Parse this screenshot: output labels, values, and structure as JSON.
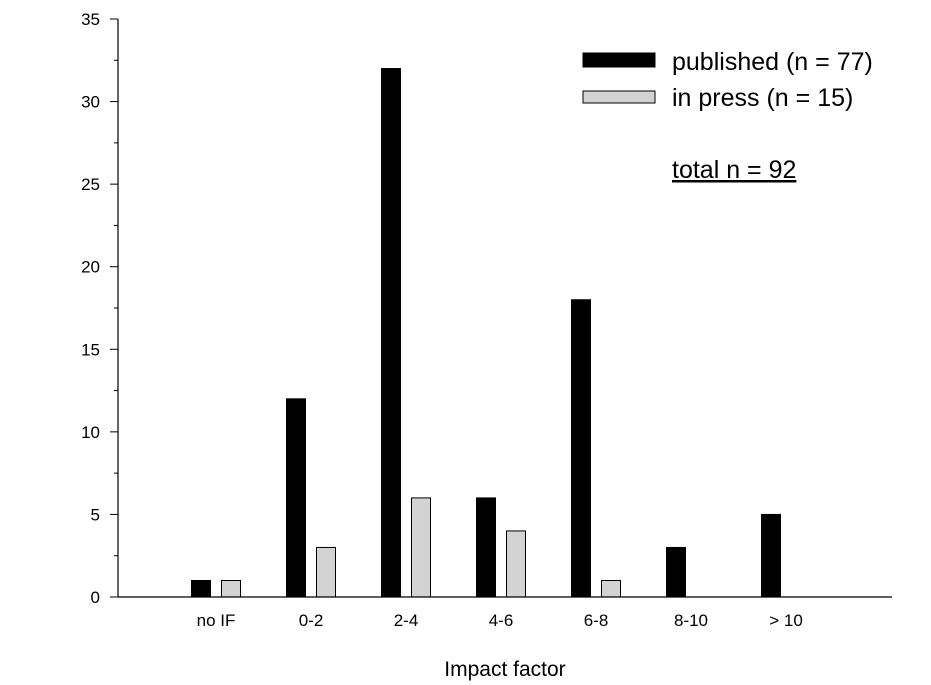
{
  "chart_data": {
    "type": "bar",
    "categories": [
      "no IF",
      "0-2",
      "2-4",
      "4-6",
      "6-8",
      "8-10",
      "> 10"
    ],
    "series": [
      {
        "name": "published (n = 77)",
        "color": "#000000",
        "values": [
          1,
          12,
          32,
          6,
          18,
          3,
          5
        ]
      },
      {
        "name": "in press (n = 15)",
        "color": "#d3d3d3",
        "values": [
          1,
          3,
          6,
          4,
          1,
          0,
          0
        ]
      }
    ],
    "xlabel": "Impact factor",
    "ylabel": "",
    "ylim": [
      0,
      35
    ],
    "yticks": [
      "0",
      "5",
      "10",
      "15",
      "20",
      "25",
      "30",
      "35"
    ],
    "legend_position": "top-right",
    "annotation": "total n = 92",
    "grid": false
  }
}
